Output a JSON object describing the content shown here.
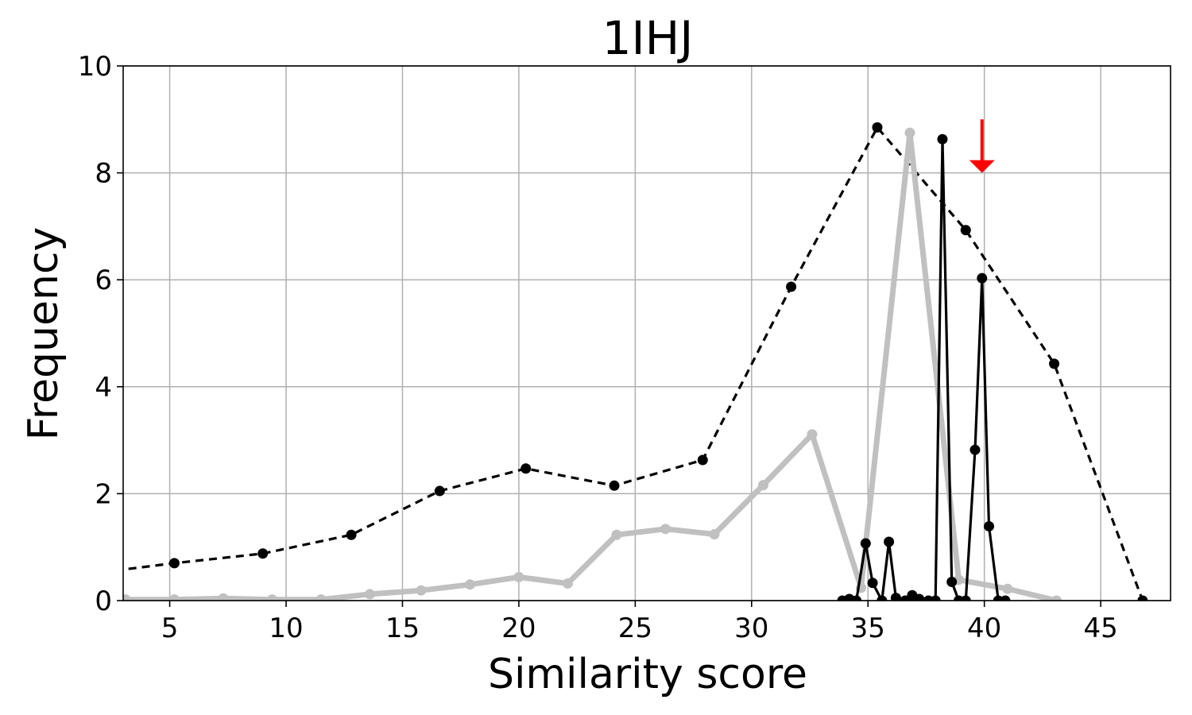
{
  "chart_data": {
    "type": "line",
    "title": "1IHJ",
    "xlabel": "Similarity score",
    "ylabel": "Frequency",
    "xlim": [
      3,
      48
    ],
    "ylim": [
      0,
      10
    ],
    "xticks": [
      5,
      10,
      15,
      20,
      25,
      30,
      35,
      40,
      45
    ],
    "yticks": [
      0,
      2,
      4,
      6,
      8,
      10
    ],
    "grid": true,
    "series": [
      {
        "style": "dashed-black-markers",
        "color": "#000000",
        "x": [
          1.5,
          5.2,
          9.0,
          12.8,
          16.6,
          20.3,
          24.1,
          27.9,
          31.7,
          35.4,
          39.2,
          43.0,
          46.8
        ],
        "y": [
          0.5,
          0.7,
          0.88,
          1.23,
          2.05,
          2.47,
          2.15,
          2.63,
          5.87,
          8.85,
          6.93,
          4.43,
          0.0
        ]
      },
      {
        "style": "thick-gray-markers",
        "color": "#c0c0c0",
        "x": [
          3.1,
          5.2,
          7.3,
          9.4,
          11.5,
          13.6,
          15.8,
          17.9,
          20.0,
          22.1,
          24.2,
          26.3,
          28.4,
          30.5,
          32.6,
          34.7,
          36.8,
          38.9,
          41.0,
          43.1
        ],
        "y": [
          0.02,
          0.02,
          0.04,
          0.02,
          0.02,
          0.12,
          0.19,
          0.3,
          0.44,
          0.32,
          1.23,
          1.34,
          1.24,
          2.16,
          3.11,
          0.24,
          8.75,
          0.39,
          0.22,
          0.0
        ]
      },
      {
        "style": "solid-black-markers",
        "color": "#000000",
        "x": [
          33.9,
          34.2,
          34.5,
          34.9,
          35.2,
          35.6,
          35.9,
          36.2,
          36.6,
          36.9,
          37.2,
          37.6,
          37.9,
          38.2,
          38.6,
          38.9,
          39.2,
          39.6,
          39.9,
          40.2,
          40.6,
          40.9
        ],
        "y": [
          0.0,
          0.03,
          0.0,
          1.07,
          0.33,
          0.0,
          1.1,
          0.05,
          0.0,
          0.1,
          0.03,
          0.0,
          0.0,
          8.63,
          0.35,
          0.0,
          0.0,
          2.82,
          6.03,
          1.39,
          0.0,
          0.0
        ]
      }
    ],
    "annotations": [
      {
        "type": "arrow",
        "color": "#ff0000",
        "x": 39.9,
        "y_from": 9.0,
        "y_to": 8.0
      }
    ]
  }
}
